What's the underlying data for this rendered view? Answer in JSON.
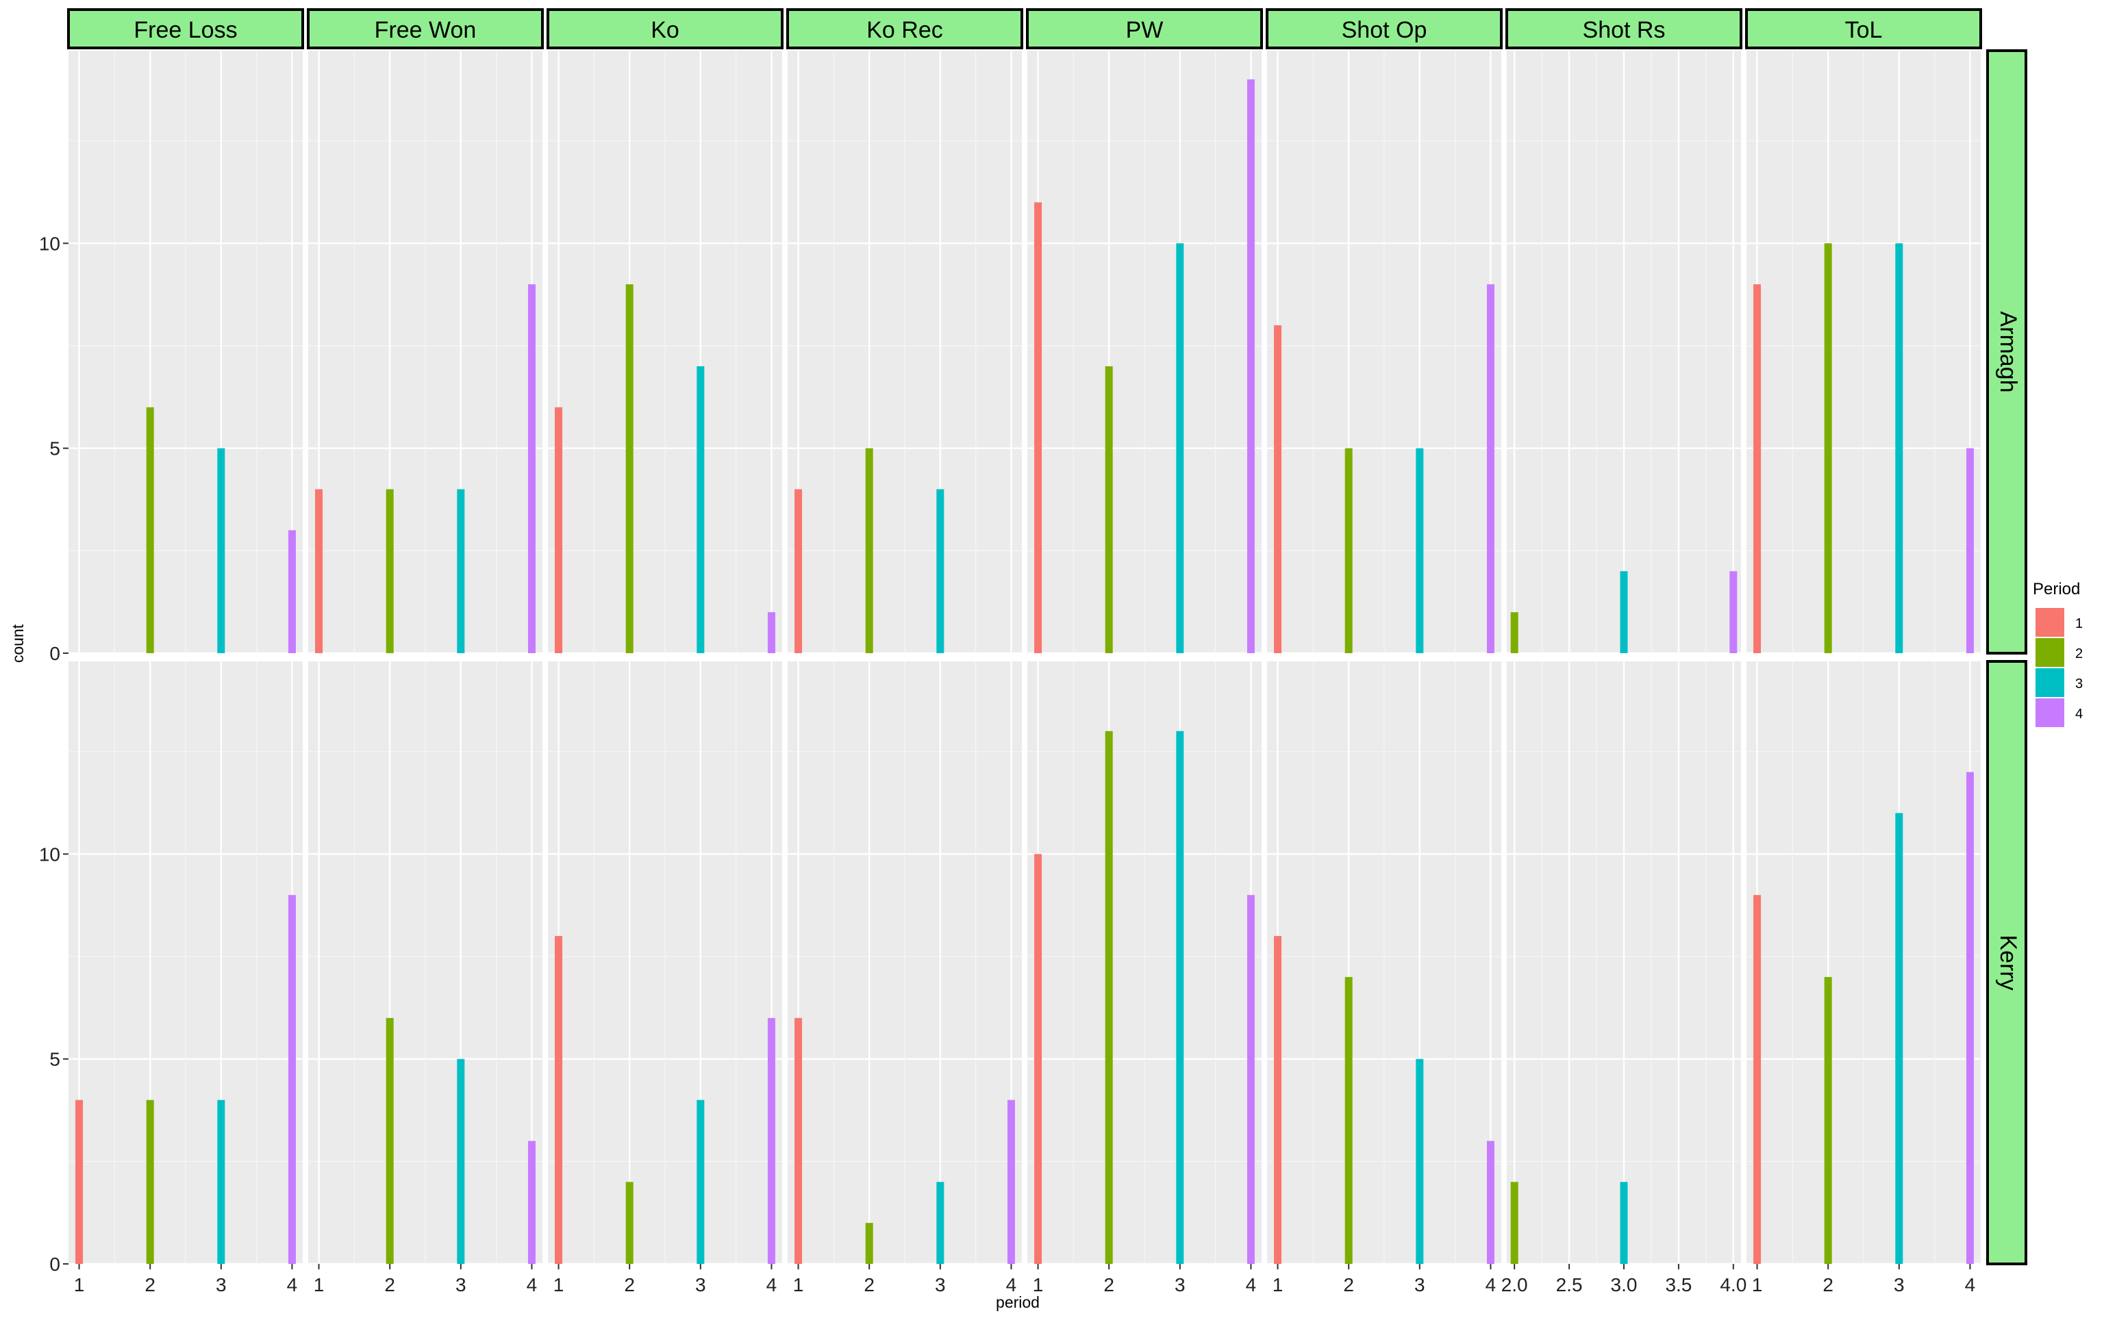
{
  "chart_data": {
    "type": "bar",
    "xlabel": "period",
    "ylabel": "count",
    "legend": {
      "title": "Period",
      "position": "right",
      "entries": [
        "1",
        "2",
        "3",
        "4"
      ]
    },
    "colors": {
      "1": "#F8766D",
      "2": "#7CAE00",
      "3": "#00BFC4",
      "4": "#C77CFF",
      "strip_fill": "#90EE90",
      "panel_bg": "#EBEBEB",
      "grid": "#FFFFFF"
    },
    "y_ticks": [
      0,
      5,
      10
    ],
    "ylim": [
      0,
      14.7
    ],
    "grid": true,
    "columns": [
      "Free Loss",
      "Free Won",
      "Ko",
      "Ko Rec",
      "PW",
      "Shot Op",
      "Shot Rs",
      "ToL"
    ],
    "rows": [
      "Armagh",
      "Kerry"
    ],
    "x_ticks": {
      "default": [
        "1",
        "2",
        "3",
        "4"
      ],
      "Shot Rs": [
        "2.0",
        "2.5",
        "3.0",
        "3.5",
        "4.0"
      ]
    },
    "xlim": {
      "default": [
        0.85,
        4.15
      ],
      "Shot Rs": [
        1.93,
        4.07
      ]
    },
    "panels": [
      {
        "row": "Armagh",
        "column": "Free Loss",
        "bars": [
          {
            "period": 2,
            "count": 6
          },
          {
            "period": 3,
            "count": 5
          },
          {
            "period": 4,
            "count": 3
          }
        ]
      },
      {
        "row": "Armagh",
        "column": "Free Won",
        "bars": [
          {
            "period": 1,
            "count": 4
          },
          {
            "period": 2,
            "count": 4
          },
          {
            "period": 3,
            "count": 4
          },
          {
            "period": 4,
            "count": 9
          }
        ]
      },
      {
        "row": "Armagh",
        "column": "Ko",
        "bars": [
          {
            "period": 1,
            "count": 6
          },
          {
            "period": 2,
            "count": 9
          },
          {
            "period": 3,
            "count": 7
          },
          {
            "period": 4,
            "count": 1
          }
        ]
      },
      {
        "row": "Armagh",
        "column": "Ko Rec",
        "bars": [
          {
            "period": 1,
            "count": 4
          },
          {
            "period": 2,
            "count": 5
          },
          {
            "period": 3,
            "count": 4
          }
        ]
      },
      {
        "row": "Armagh",
        "column": "PW",
        "bars": [
          {
            "period": 1,
            "count": 11
          },
          {
            "period": 2,
            "count": 7
          },
          {
            "period": 3,
            "count": 10
          },
          {
            "period": 4,
            "count": 14
          }
        ]
      },
      {
        "row": "Armagh",
        "column": "Shot Op",
        "bars": [
          {
            "period": 1,
            "count": 8
          },
          {
            "period": 2,
            "count": 5
          },
          {
            "period": 3,
            "count": 5
          },
          {
            "period": 4,
            "count": 9
          }
        ]
      },
      {
        "row": "Armagh",
        "column": "Shot Rs",
        "bars": [
          {
            "period": 2,
            "count": 1
          },
          {
            "period": 3,
            "count": 2
          },
          {
            "period": 4,
            "count": 2
          }
        ]
      },
      {
        "row": "Armagh",
        "column": "ToL",
        "bars": [
          {
            "period": 1,
            "count": 9
          },
          {
            "period": 2,
            "count": 10
          },
          {
            "period": 3,
            "count": 10
          },
          {
            "period": 4,
            "count": 5
          }
        ]
      },
      {
        "row": "Kerry",
        "column": "Free Loss",
        "bars": [
          {
            "period": 1,
            "count": 4
          },
          {
            "period": 2,
            "count": 4
          },
          {
            "period": 3,
            "count": 4
          },
          {
            "period": 4,
            "count": 9
          }
        ]
      },
      {
        "row": "Kerry",
        "column": "Free Won",
        "bars": [
          {
            "period": 2,
            "count": 6
          },
          {
            "period": 3,
            "count": 5
          },
          {
            "period": 4,
            "count": 3
          }
        ]
      },
      {
        "row": "Kerry",
        "column": "Ko",
        "bars": [
          {
            "period": 1,
            "count": 8
          },
          {
            "period": 2,
            "count": 2
          },
          {
            "period": 3,
            "count": 4
          },
          {
            "period": 4,
            "count": 6
          }
        ]
      },
      {
        "row": "Kerry",
        "column": "Ko Rec",
        "bars": [
          {
            "period": 1,
            "count": 6
          },
          {
            "period": 2,
            "count": 1
          },
          {
            "period": 3,
            "count": 2
          },
          {
            "period": 4,
            "count": 4
          }
        ]
      },
      {
        "row": "Kerry",
        "column": "PW",
        "bars": [
          {
            "period": 1,
            "count": 10
          },
          {
            "period": 2,
            "count": 13
          },
          {
            "period": 3,
            "count": 13
          },
          {
            "period": 4,
            "count": 9
          }
        ]
      },
      {
        "row": "Kerry",
        "column": "Shot Op",
        "bars": [
          {
            "period": 1,
            "count": 8
          },
          {
            "period": 2,
            "count": 7
          },
          {
            "period": 3,
            "count": 5
          },
          {
            "period": 4,
            "count": 3
          }
        ]
      },
      {
        "row": "Kerry",
        "column": "Shot Rs",
        "bars": [
          {
            "period": 2,
            "count": 2
          },
          {
            "period": 3,
            "count": 2
          }
        ]
      },
      {
        "row": "Kerry",
        "column": "ToL",
        "bars": [
          {
            "period": 1,
            "count": 9
          },
          {
            "period": 2,
            "count": 7
          },
          {
            "period": 3,
            "count": 11
          },
          {
            "period": 4,
            "count": 12
          }
        ]
      }
    ]
  }
}
